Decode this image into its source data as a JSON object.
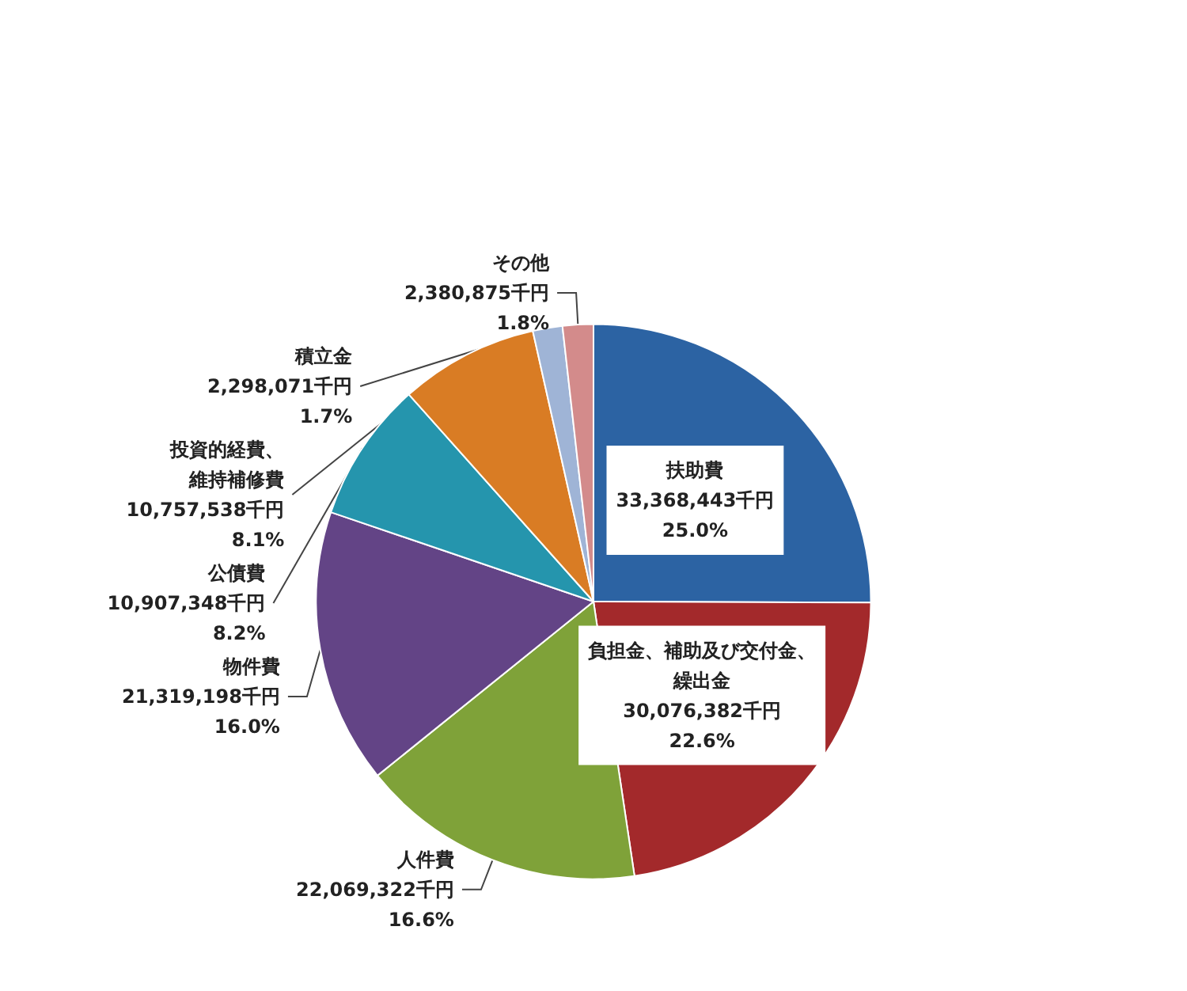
{
  "chart_data": {
    "type": "pie",
    "categories": [
      "扶助費",
      "負担金、補助及び交付金、繰出金",
      "人件費",
      "物件費",
      "公債費",
      "投資的経費、維持補修費",
      "積立金",
      "その他"
    ],
    "values": [
      33368443,
      30076382,
      22069322,
      21319198,
      10907348,
      10757538,
      2298071,
      2380875
    ],
    "value_labels": [
      "33,368,443千円\n25.0%",
      "30,076,382千円\n22.6%",
      "22,069,322千円\n16.6%",
      "21,319,198千円\n16.0%",
      "10,907,348千円\n8.2%",
      "10,757,538千円\n8.1%",
      "2,298,071千円\n1.7%",
      "2,380,875千円\n1.8%"
    ],
    "colors": [
      "#2c63a3",
      "#a3292b",
      "#7fa239",
      "#634486",
      "#2595ad",
      "#d97c24",
      "#9fb4d6",
      "#d38b8b"
    ],
    "legend": false
  }
}
